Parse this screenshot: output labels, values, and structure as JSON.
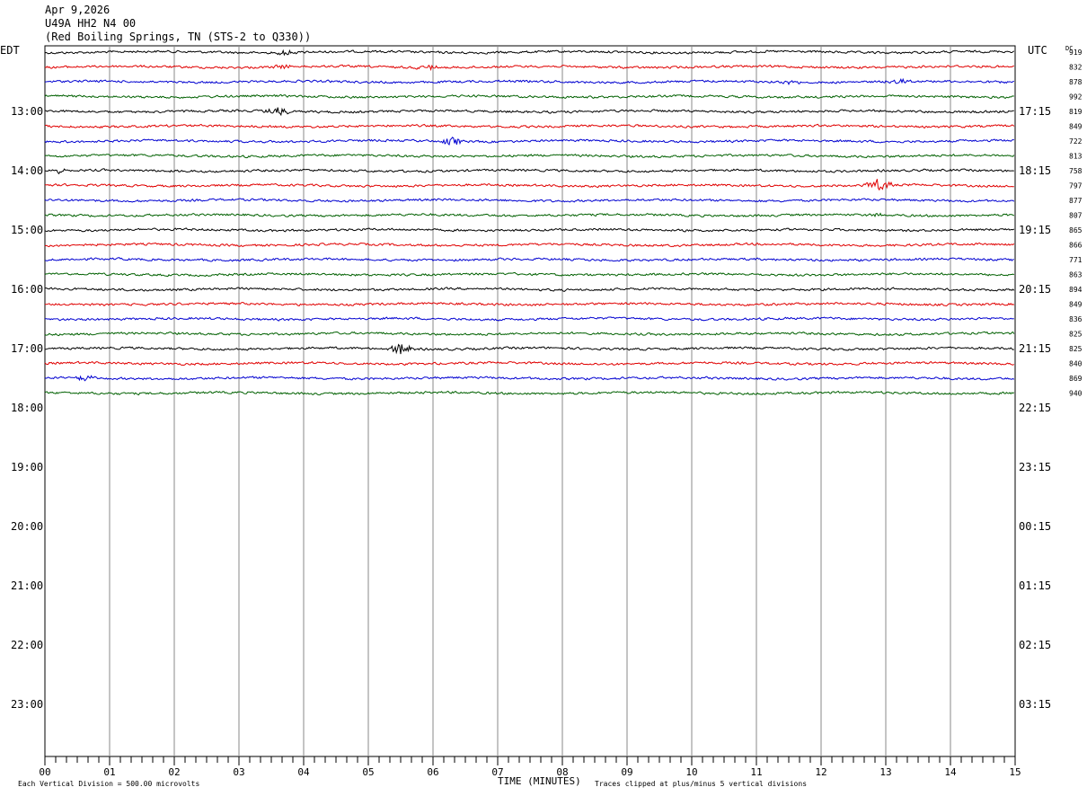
{
  "header": {
    "date": "Apr 9,2026",
    "station": "U49A HH2 N4 00",
    "location": "(Red Boiling Springs, TN (STS-2 to Q330))"
  },
  "labels": {
    "left_zone": "EDT",
    "right_zone": "UTC",
    "dc": "DC",
    "division": "Each Vertical Division =  500.00 microvolts",
    "xlabel": "TIME (MINUTES)",
    "clip_note": "Traces clipped at plus/minus 5 vertical divisions"
  },
  "chart_data": {
    "type": "line",
    "title": "U49A HH2 N4 00",
    "xlabel": "TIME (MINUTES)",
    "xlim": [
      0,
      15
    ],
    "x_ticks": [
      "00",
      "01",
      "02",
      "03",
      "04",
      "05",
      "06",
      "07",
      "08",
      "09",
      "10",
      "11",
      "12",
      "13",
      "14",
      "15"
    ],
    "left_hour_labels": [
      "13:00",
      "14:00",
      "15:00",
      "16:00",
      "17:00",
      "18:00",
      "19:00",
      "20:00",
      "21:00",
      "22:00",
      "23:00"
    ],
    "right_hour_labels": [
      "17:15",
      "18:15",
      "19:15",
      "20:15",
      "21:15",
      "22:15",
      "23:15",
      "00:15",
      "01:15",
      "02:15",
      "03:15"
    ],
    "trace_colors": [
      "#000000",
      "#e00000",
      "#0000d0",
      "#006000"
    ],
    "dc_values": [
      "919",
      "832",
      "878",
      "992",
      "819",
      "849",
      "722",
      "813",
      "758",
      "797",
      "877",
      "807",
      "865",
      "866",
      "771",
      "863",
      "894",
      "849",
      "836",
      "825",
      "825",
      "840",
      "869",
      "940"
    ],
    "events": [
      {
        "trace": 0,
        "minute": 3.7,
        "amp": 3
      },
      {
        "trace": 1,
        "minute": 5.9,
        "amp": 3
      },
      {
        "trace": 1,
        "minute": 3.7,
        "amp": 2.5
      },
      {
        "trace": 2,
        "minute": 11.6,
        "amp": 3
      },
      {
        "trace": 2,
        "minute": 13.2,
        "amp": 2
      },
      {
        "trace": 4,
        "minute": 3.6,
        "amp": 6
      },
      {
        "trace": 6,
        "minute": 6.3,
        "amp": 4
      },
      {
        "trace": 8,
        "minute": 0.2,
        "amp": 2.5
      },
      {
        "trace": 9,
        "minute": 12.9,
        "amp": 7
      },
      {
        "trace": 22,
        "minute": 0.6,
        "amp": 4
      },
      {
        "trace": 20,
        "minute": 5.5,
        "amp": 6
      },
      {
        "trace": 11,
        "minute": 12.8,
        "amp": 2
      }
    ]
  }
}
